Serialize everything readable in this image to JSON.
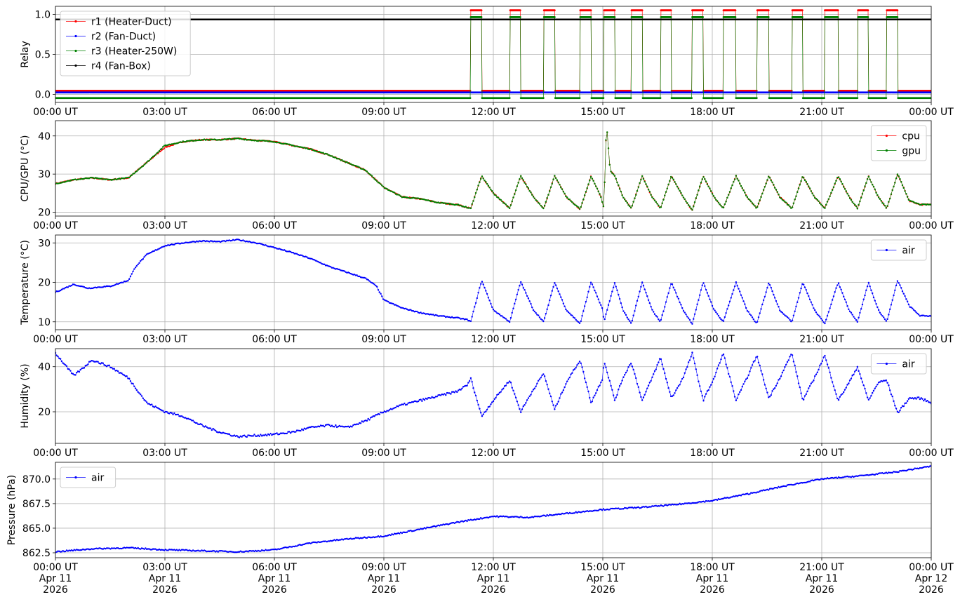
{
  "chart_data": [
    {
      "type": "line",
      "ylabel": "Relay",
      "x_ticks": [
        "00:00 UT",
        "03:00 UT",
        "06:00 UT",
        "09:00 UT",
        "12:00 UT",
        "15:00 UT",
        "18:00 UT",
        "21:00 UT",
        "00:00 UT"
      ],
      "ylim": [
        -0.1,
        1.1
      ],
      "y_ticks": [
        "0.0",
        "0.5",
        "1.0"
      ],
      "grid": true,
      "legend_position": "upper-left",
      "series": [
        {
          "name": "r1 (Heater-Duct)",
          "color": "#ff0000",
          "on_value": 1.05,
          "off_value": 0.045
        },
        {
          "name": "r2 (Fan-Duct)",
          "color": "#0000ff",
          "on_value": 0.025,
          "off_value": 0.025
        },
        {
          "name": "r3 (Heater-250W)",
          "color": "#008000",
          "on_value": 0.965,
          "off_value": -0.045
        },
        {
          "name": "r4 (Fan-Box)",
          "color": "#000000",
          "on_value": 0.935,
          "off_value": 0.935
        }
      ],
      "heater_on_intervals_hours": [
        [
          11.38,
          11.68
        ],
        [
          12.45,
          12.75
        ],
        [
          13.38,
          13.68
        ],
        [
          14.38,
          14.68
        ],
        [
          15.03,
          15.33
        ],
        [
          15.78,
          16.08
        ],
        [
          16.58,
          16.88
        ],
        [
          17.45,
          17.75
        ],
        [
          18.3,
          18.65
        ],
        [
          19.22,
          19.55
        ],
        [
          20.18,
          20.48
        ],
        [
          21.08,
          21.45
        ],
        [
          21.98,
          22.28
        ],
        [
          22.78,
          23.08
        ]
      ]
    },
    {
      "type": "line",
      "ylabel": "CPU/GPU (°C)",
      "x_ticks": [
        "00:00 UT",
        "03:00 UT",
        "06:00 UT",
        "09:00 UT",
        "12:00 UT",
        "15:00 UT",
        "18:00 UT",
        "21:00 UT",
        "00:00 UT"
      ],
      "ylim": [
        19,
        44
      ],
      "y_ticks": [
        "20",
        "30",
        "40"
      ],
      "grid": true,
      "legend_position": "upper-right",
      "series": [
        {
          "name": "cpu",
          "color": "#ff0000",
          "x": [
            0,
            0.5,
            1,
            1.5,
            2,
            2.5,
            3,
            3.5,
            4,
            4.5,
            5,
            5.5,
            6,
            6.5,
            7,
            7.5,
            8,
            8.5,
            9,
            9.5,
            10,
            10.5,
            11,
            11.38,
            11.68,
            12.0,
            12.45,
            12.75,
            13.1,
            13.38,
            13.68,
            14.0,
            14.38,
            14.68,
            14.95,
            15.03,
            15.1,
            15.2,
            15.33,
            15.55,
            15.78,
            16.08,
            16.35,
            16.58,
            16.88,
            17.2,
            17.45,
            17.75,
            18.05,
            18.3,
            18.65,
            18.95,
            19.22,
            19.55,
            19.85,
            20.18,
            20.48,
            20.8,
            21.08,
            21.45,
            21.75,
            21.98,
            22.28,
            22.55,
            22.78,
            23.08,
            23.4,
            23.7,
            24
          ],
          "y": [
            27.5,
            28.5,
            29,
            28.5,
            29,
            33,
            37,
            38.5,
            39,
            39,
            39.3,
            38.8,
            38.5,
            37.5,
            36.5,
            35,
            33,
            31,
            26.5,
            24,
            23.5,
            22.5,
            22,
            21,
            29.5,
            25,
            21,
            29.5,
            24,
            21,
            29.5,
            24,
            20.8,
            29.5,
            24,
            21,
            43.5,
            31,
            29.5,
            24,
            21,
            29.5,
            24,
            21,
            29.5,
            24,
            20.5,
            29.5,
            24,
            21,
            29.5,
            24,
            21,
            29.5,
            24,
            21,
            29.5,
            24,
            21,
            29.5,
            24,
            21,
            29.5,
            24,
            21,
            30,
            23,
            22,
            22
          ]
        },
        {
          "name": "gpu",
          "color": "#008000",
          "x": [
            0,
            0.5,
            1,
            1.5,
            2,
            2.5,
            3,
            3.5,
            4,
            4.5,
            5,
            5.5,
            6,
            6.5,
            7,
            7.5,
            8,
            8.5,
            9,
            9.5,
            10,
            10.5,
            11,
            11.38,
            11.68,
            12.0,
            12.45,
            12.75,
            13.1,
            13.38,
            13.68,
            14.0,
            14.38,
            14.68,
            14.95,
            15.03,
            15.1,
            15.2,
            15.33,
            15.55,
            15.78,
            16.08,
            16.35,
            16.58,
            16.88,
            17.2,
            17.45,
            17.75,
            18.05,
            18.3,
            18.65,
            18.95,
            19.22,
            19.55,
            19.85,
            20.18,
            20.48,
            20.8,
            21.08,
            21.45,
            21.75,
            21.98,
            22.28,
            22.55,
            22.78,
            23.08,
            23.4,
            23.7,
            24
          ],
          "y": [
            27.5,
            28.5,
            29,
            28.5,
            29,
            33,
            37.5,
            38.5,
            39,
            39,
            39.3,
            38.8,
            38.5,
            37.5,
            36.5,
            35,
            33,
            31,
            26.5,
            24,
            23.5,
            22.5,
            22,
            21,
            29.5,
            25,
            21,
            29.5,
            24,
            21,
            29.5,
            24,
            20.8,
            29.5,
            24,
            21,
            43.5,
            31,
            29.5,
            24,
            21,
            29.5,
            24,
            21,
            29.5,
            24,
            20.5,
            29.5,
            24,
            21,
            29.5,
            24,
            21,
            29.5,
            24,
            21,
            29.5,
            24,
            21,
            29.5,
            24,
            21,
            29.5,
            24,
            21,
            30,
            23,
            22,
            22
          ]
        }
      ]
    },
    {
      "type": "line",
      "ylabel": "Temperature (°C)",
      "x_ticks": [
        "00:00 UT",
        "03:00 UT",
        "06:00 UT",
        "09:00 UT",
        "12:00 UT",
        "15:00 UT",
        "18:00 UT",
        "21:00 UT",
        "00:00 UT"
      ],
      "ylim": [
        8,
        32
      ],
      "y_ticks": [
        "10",
        "20",
        "30"
      ],
      "grid": true,
      "legend_position": "upper-right",
      "series": [
        {
          "name": "air",
          "color": "#0000ff",
          "x": [
            0,
            0.5,
            0.9,
            1.2,
            1.5,
            2.0,
            2.2,
            2.5,
            3.0,
            3.5,
            4.0,
            4.5,
            5.0,
            5.5,
            6.0,
            6.5,
            7.0,
            7.5,
            8.0,
            8.5,
            8.8,
            9.0,
            9.5,
            10.0,
            10.5,
            11.0,
            11.3,
            11.38,
            11.68,
            12.0,
            12.45,
            12.75,
            13.1,
            13.38,
            13.68,
            14.0,
            14.38,
            14.68,
            15.0,
            15.03,
            15.33,
            15.55,
            15.78,
            16.08,
            16.35,
            16.58,
            16.88,
            17.2,
            17.45,
            17.75,
            18.05,
            18.3,
            18.65,
            18.95,
            19.22,
            19.55,
            19.85,
            20.18,
            20.48,
            20.8,
            21.08,
            21.45,
            21.75,
            21.98,
            22.28,
            22.55,
            22.78,
            23.08,
            23.4,
            23.7,
            24
          ],
          "y": [
            17.5,
            19.5,
            18.5,
            18.8,
            19,
            20.5,
            24,
            27,
            29.3,
            30,
            30.5,
            30.3,
            30.8,
            30,
            28.8,
            27.5,
            26,
            24,
            22.5,
            21,
            19,
            15.5,
            13.5,
            12.3,
            11.5,
            11,
            10.5,
            10,
            20.5,
            13,
            10,
            20.2,
            13,
            10,
            20,
            13,
            9.5,
            20.2,
            13,
            10,
            20,
            13,
            9.5,
            20,
            13,
            10,
            20,
            13,
            9.5,
            20,
            13,
            10,
            20,
            13,
            9.5,
            20,
            13,
            10,
            20,
            13,
            9.5,
            20,
            13,
            10,
            20,
            13,
            10,
            20.5,
            14,
            11.5,
            11.5
          ]
        }
      ]
    },
    {
      "type": "line",
      "ylabel": "Humidity (%)",
      "x_ticks": [
        "00:00 UT",
        "03:00 UT",
        "06:00 UT",
        "09:00 UT",
        "12:00 UT",
        "15:00 UT",
        "18:00 UT",
        "21:00 UT",
        "00:00 UT"
      ],
      "ylim": [
        6,
        48
      ],
      "y_ticks": [
        "20",
        "40"
      ],
      "grid": true,
      "legend_position": "upper-right",
      "series": [
        {
          "name": "air",
          "color": "#0000ff",
          "x": [
            0,
            0.3,
            0.5,
            0.8,
            1.0,
            1.5,
            2.0,
            2.5,
            3.0,
            3.5,
            4.0,
            4.5,
            5.0,
            5.5,
            6.0,
            6.5,
            7.0,
            7.5,
            8.0,
            8.5,
            9.0,
            9.5,
            10.0,
            10.5,
            11.0,
            11.3,
            11.38,
            11.68,
            12.0,
            12.45,
            12.75,
            13.1,
            13.38,
            13.68,
            14.0,
            14.38,
            14.68,
            15.0,
            15.03,
            15.33,
            15.55,
            15.78,
            16.08,
            16.35,
            16.58,
            16.88,
            17.2,
            17.45,
            17.75,
            18.05,
            18.3,
            18.65,
            18.95,
            19.22,
            19.55,
            19.85,
            20.18,
            20.48,
            20.8,
            21.08,
            21.45,
            21.75,
            21.98,
            22.28,
            22.55,
            22.78,
            23.08,
            23.4,
            23.7,
            24
          ],
          "y": [
            46,
            40,
            36,
            40,
            43,
            40,
            35,
            24,
            20,
            18,
            14,
            11,
            9,
            9.5,
            10,
            11,
            13,
            14,
            13,
            16,
            20,
            23,
            25,
            27,
            29,
            32,
            35,
            18,
            25,
            34,
            20,
            30,
            37,
            21,
            33,
            43,
            24,
            35,
            43,
            25,
            35,
            42,
            25,
            35,
            44,
            26,
            35,
            46,
            25,
            35,
            46,
            25,
            35,
            45,
            26,
            35,
            46,
            25,
            35,
            45,
            25,
            33,
            40,
            25,
            33,
            34,
            19.5,
            26,
            26,
            24
          ]
        }
      ]
    },
    {
      "type": "line",
      "ylabel": "Pressure (hPa)",
      "x_ticks": [
        "00:00 UT\nApr 11\n2026",
        "03:00 UT\nApr 11\n2026",
        "06:00 UT\nApr 11\n2026",
        "09:00 UT\nApr 11\n2026",
        "12:00 UT\nApr 11\n2026",
        "15:00 UT\nApr 11\n2026",
        "18:00 UT\nApr 11\n2026",
        "21:00 UT\nApr 11\n2026",
        "00:00 UT\nApr 12\n2026"
      ],
      "ylim": [
        862.0,
        871.7
      ],
      "y_ticks": [
        "862.5",
        "865.0",
        "867.5",
        "870.0"
      ],
      "grid": true,
      "legend_position": "upper-left",
      "series": [
        {
          "name": "air",
          "color": "#0000ff",
          "x": [
            0,
            1,
            2,
            3,
            4,
            5,
            6,
            7,
            8,
            9,
            10,
            11,
            12,
            13,
            14,
            15,
            16,
            17,
            18,
            19,
            20,
            21,
            22,
            23,
            24
          ],
          "y": [
            862.6,
            862.9,
            863.0,
            862.8,
            862.7,
            862.6,
            862.8,
            863.5,
            863.9,
            864.2,
            864.9,
            865.6,
            866.2,
            866.1,
            866.5,
            866.9,
            867.1,
            867.4,
            867.8,
            868.5,
            869.3,
            870.0,
            870.3,
            870.7,
            871.3
          ]
        }
      ]
    }
  ]
}
